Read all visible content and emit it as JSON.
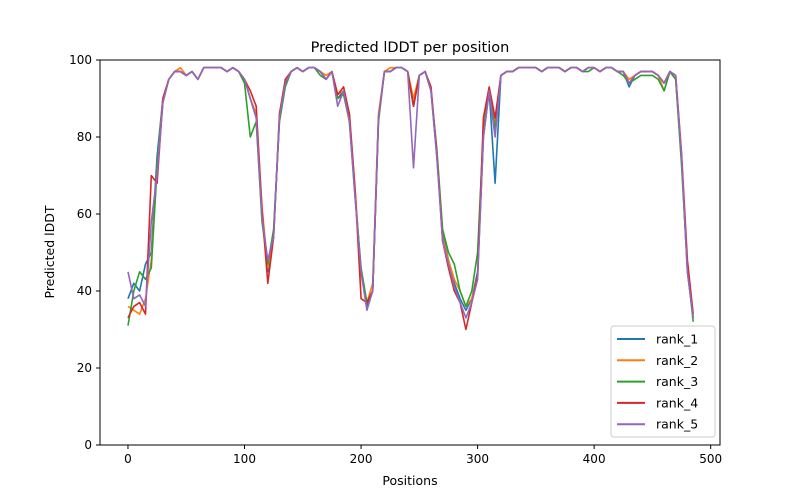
{
  "chart_data": {
    "type": "line",
    "title": "Predicted lDDT per position",
    "xlabel": "Positions",
    "ylabel": "Predicted lDDT",
    "xlim": [
      -24,
      508
    ],
    "ylim": [
      0,
      100
    ],
    "xticks": [
      0,
      100,
      200,
      300,
      400,
      500
    ],
    "yticks": [
      0,
      20,
      40,
      60,
      80,
      100
    ],
    "grid": false,
    "legend_placement": "bottom-right",
    "x_step": 5,
    "x_start": 0,
    "series": [
      {
        "name": "rank_1",
        "color": "#1f77b4",
        "values": [
          38,
          42,
          40,
          47,
          50,
          75,
          90,
          95,
          97,
          97,
          96,
          97,
          95,
          98,
          98,
          98,
          98,
          97,
          98,
          97,
          95,
          90,
          85,
          60,
          45,
          55,
          85,
          94,
          97,
          98,
          97,
          98,
          98,
          97,
          95,
          97,
          90,
          92,
          85,
          65,
          45,
          36,
          40,
          85,
          97,
          97,
          98,
          98,
          97,
          88,
          96,
          97,
          92,
          75,
          55,
          48,
          42,
          38,
          35,
          38,
          45,
          80,
          92,
          68,
          96,
          97,
          97,
          98,
          98,
          98,
          98,
          97,
          98,
          98,
          98,
          97,
          98,
          98,
          97,
          98,
          98,
          97,
          98,
          98,
          97,
          97,
          93,
          96,
          97,
          97,
          97,
          96,
          94,
          97,
          95,
          75,
          45,
          33
        ]
      },
      {
        "name": "rank_2",
        "color": "#ff7f0e",
        "values": [
          36,
          35,
          34,
          38,
          48,
          72,
          90,
          95,
          97,
          98,
          96,
          97,
          95,
          98,
          98,
          98,
          98,
          97,
          98,
          97,
          95,
          90,
          86,
          62,
          46,
          54,
          86,
          94,
          97,
          98,
          97,
          98,
          98,
          97,
          96,
          97,
          91,
          92,
          86,
          66,
          44,
          37,
          42,
          86,
          97,
          98,
          98,
          98,
          97,
          90,
          96,
          97,
          92,
          76,
          54,
          48,
          43,
          40,
          36,
          38,
          44,
          80,
          92,
          84,
          96,
          97,
          97,
          98,
          98,
          98,
          98,
          97,
          98,
          98,
          98,
          97,
          98,
          98,
          97,
          98,
          98,
          97,
          98,
          98,
          97,
          97,
          95,
          96,
          97,
          97,
          97,
          96,
          92,
          97,
          95,
          74,
          46,
          33
        ]
      },
      {
        "name": "rank_3",
        "color": "#2ca02c",
        "values": [
          31,
          40,
          45,
          43,
          46,
          72,
          89,
          95,
          97,
          97,
          96,
          97,
          95,
          98,
          98,
          98,
          98,
          97,
          98,
          97,
          94,
          80,
          84,
          58,
          47,
          56,
          84,
          93,
          97,
          98,
          97,
          98,
          98,
          96,
          95,
          97,
          90,
          91,
          84,
          64,
          46,
          37,
          40,
          84,
          97,
          97,
          98,
          98,
          97,
          88,
          96,
          97,
          92,
          77,
          56,
          50,
          47,
          40,
          36,
          40,
          50,
          82,
          92,
          82,
          96,
          97,
          97,
          98,
          98,
          98,
          98,
          97,
          98,
          98,
          98,
          97,
          98,
          98,
          97,
          97,
          98,
          97,
          98,
          98,
          97,
          96,
          94,
          95,
          96,
          96,
          96,
          95,
          92,
          97,
          95,
          73,
          46,
          32
        ]
      },
      {
        "name": "rank_4",
        "color": "#d62728",
        "values": [
          33,
          36,
          37,
          34,
          70,
          68,
          90,
          95,
          97,
          97,
          96,
          97,
          95,
          98,
          98,
          98,
          98,
          97,
          98,
          97,
          95,
          92,
          88,
          61,
          42,
          54,
          86,
          95,
          97,
          98,
          97,
          98,
          98,
          97,
          95,
          97,
          91,
          93,
          86,
          66,
          38,
          37,
          40,
          85,
          97,
          97,
          98,
          98,
          97,
          88,
          96,
          97,
          93,
          76,
          53,
          46,
          40,
          37,
          30,
          37,
          44,
          85,
          93,
          85,
          96,
          97,
          97,
          98,
          98,
          98,
          98,
          97,
          98,
          98,
          98,
          97,
          98,
          98,
          97,
          98,
          98,
          97,
          98,
          98,
          97,
          97,
          94,
          96,
          97,
          97,
          97,
          96,
          94,
          97,
          96,
          76,
          48,
          34
        ]
      },
      {
        "name": "rank_5",
        "color": "#9467bd",
        "values": [
          45,
          38,
          39,
          36,
          58,
          70,
          89,
          95,
          97,
          97,
          96,
          97,
          95,
          98,
          98,
          98,
          98,
          97,
          98,
          97,
          95,
          90,
          85,
          59,
          48,
          54,
          85,
          94,
          97,
          98,
          97,
          98,
          98,
          97,
          95,
          97,
          88,
          92,
          84,
          64,
          45,
          35,
          40,
          85,
          97,
          97,
          98,
          98,
          97,
          72,
          96,
          97,
          92,
          75,
          53,
          47,
          41,
          37,
          33,
          37,
          43,
          80,
          92,
          80,
          96,
          97,
          97,
          98,
          98,
          98,
          98,
          97,
          98,
          98,
          98,
          97,
          98,
          98,
          97,
          98,
          98,
          97,
          98,
          98,
          97,
          97,
          94,
          96,
          97,
          97,
          97,
          96,
          94,
          97,
          96,
          75,
          45,
          33
        ]
      }
    ]
  }
}
